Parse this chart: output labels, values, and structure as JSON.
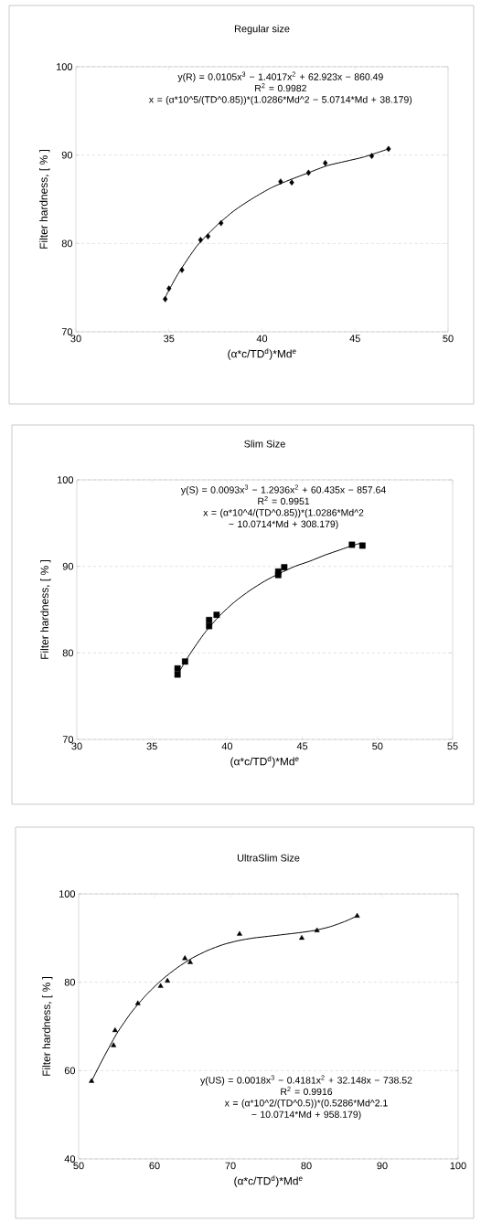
{
  "chart_data": [
    {
      "type": "scatter",
      "title": "Regular size",
      "xlabel": "(α*c/TD$^{d}$)*Md$^{e}$",
      "ylabel": "Filter hardness, [ % ]",
      "xlim": [
        30,
        50
      ],
      "xticks": [
        30,
        35,
        40,
        45,
        50
      ],
      "ylim": [
        70,
        100
      ],
      "yticks": [
        70,
        80,
        90,
        100
      ],
      "grid": "y",
      "annotations": [
        "y(R) = 0.0105x$^{3}$ − 1.4017x$^{2}$ + 62.923x − 860.49",
        "R$^{2}$ = 0.9982",
        "x = (α*10^5/(TD^0.85))*(1.0286*Md^2 − 5.0714*Md + 38.179)"
      ],
      "series": [
        {
          "marker": "diamond",
          "color": "#000000",
          "x": [
            34.8,
            35.0,
            35.7,
            36.7,
            37.1,
            37.8,
            41.0,
            41.6,
            42.5,
            43.4,
            45.9,
            46.8
          ],
          "values": [
            73.7,
            74.9,
            77.0,
            80.4,
            80.8,
            82.3,
            87.0,
            86.9,
            88.0,
            89.1,
            89.9,
            90.7
          ]
        },
        {
          "type": "line",
          "marker": "none",
          "color": "#000000",
          "x": [
            34.8,
            35.5,
            36.5,
            37.5,
            38.5,
            39.5,
            40.5,
            41.5,
            42.5,
            43.5,
            44.5,
            45.5,
            46.8
          ],
          "values": [
            73.9,
            76.6,
            79.7,
            81.9,
            83.7,
            85.1,
            86.3,
            87.2,
            88.0,
            88.8,
            89.3,
            89.8,
            90.7
          ]
        }
      ]
    },
    {
      "type": "scatter",
      "title": "Slim Size",
      "xlabel": "(α*c/TD$^{d}$)*Md$^{e}$",
      "ylabel": "Filter hardness, [ % ]",
      "xlim": [
        30,
        55
      ],
      "xticks": [
        30,
        35,
        40,
        45,
        50,
        55
      ],
      "ylim": [
        70,
        100
      ],
      "yticks": [
        70,
        80,
        90,
        100
      ],
      "grid": "y",
      "annotations": [
        "y(S) = 0.0093x$^{3}$ − 1.2936x$^{2}$ + 60.435x − 857.64",
        "R$^{2}$ = 0.9951",
        "x = (α*10^4/(TD^0.85))*(1.0286*Md^2 − 10.0714*Md + 308.179)"
      ],
      "series": [
        {
          "marker": "square",
          "color": "#000000",
          "x": [
            36.7,
            36.7,
            37.2,
            38.8,
            38.8,
            39.3,
            43.4,
            43.4,
            43.8,
            48.3,
            49.0
          ],
          "values": [
            77.5,
            78.2,
            79.0,
            83.1,
            83.8,
            84.4,
            89.0,
            89.4,
            89.9,
            92.5,
            92.4
          ]
        },
        {
          "type": "line",
          "marker": "none",
          "color": "#000000",
          "x": [
            36.8,
            37.5,
            38.5,
            39.5,
            40.5,
            41.5,
            42.5,
            43.5,
            44.5,
            45.5,
            46.5,
            47.5,
            48.5,
            49.0
          ],
          "values": [
            77.8,
            79.8,
            82.3,
            84.3,
            85.9,
            87.2,
            88.3,
            89.2,
            90.0,
            90.6,
            91.3,
            91.9,
            92.5,
            92.7
          ]
        }
      ]
    },
    {
      "type": "scatter",
      "title": "UltraSlim Size",
      "xlabel": "(α*c/TD$^{d}$)*Md$^{e}$",
      "ylabel": "Filter hardness, [ % ]",
      "xlim": [
        50,
        100
      ],
      "xticks": [
        50,
        60,
        70,
        80,
        90,
        100
      ],
      "ylim": [
        40,
        100
      ],
      "yticks": [
        40,
        60,
        80,
        100
      ],
      "grid": "y",
      "annotations": [
        "y(US) = 0.0018x$^{3}$ − 0.4181x$^{2}$ + 32.148x − 738.52",
        "R$^{2}$ = 0.9916",
        "x = (α*10^2/(TD^0.5))*(0.5286*Md^2.1 − 10.0714*Md + 958.179)"
      ],
      "series": [
        {
          "marker": "triangle",
          "color": "#000000",
          "x": [
            51.7,
            54.6,
            54.8,
            57.8,
            60.8,
            61.7,
            64.0,
            64.7,
            71.2,
            79.4,
            81.4,
            86.7
          ],
          "values": [
            57.6,
            65.7,
            69.1,
            75.2,
            79.1,
            80.3,
            85.4,
            84.5,
            90.9,
            90.0,
            91.7,
            95.0
          ]
        },
        {
          "type": "line",
          "marker": "none",
          "color": "#000000",
          "x": [
            51.7,
            53,
            55,
            57,
            59,
            61,
            63,
            65,
            67,
            69,
            71,
            73,
            75,
            77,
            79,
            81,
            83,
            85,
            86.7
          ],
          "values": [
            57.6,
            62.0,
            68.3,
            73.3,
            77.3,
            80.6,
            83.3,
            85.5,
            87.2,
            88.5,
            89.4,
            90.0,
            90.4,
            90.8,
            91.2,
            91.7,
            92.5,
            93.7,
            95.0
          ]
        }
      ]
    }
  ]
}
